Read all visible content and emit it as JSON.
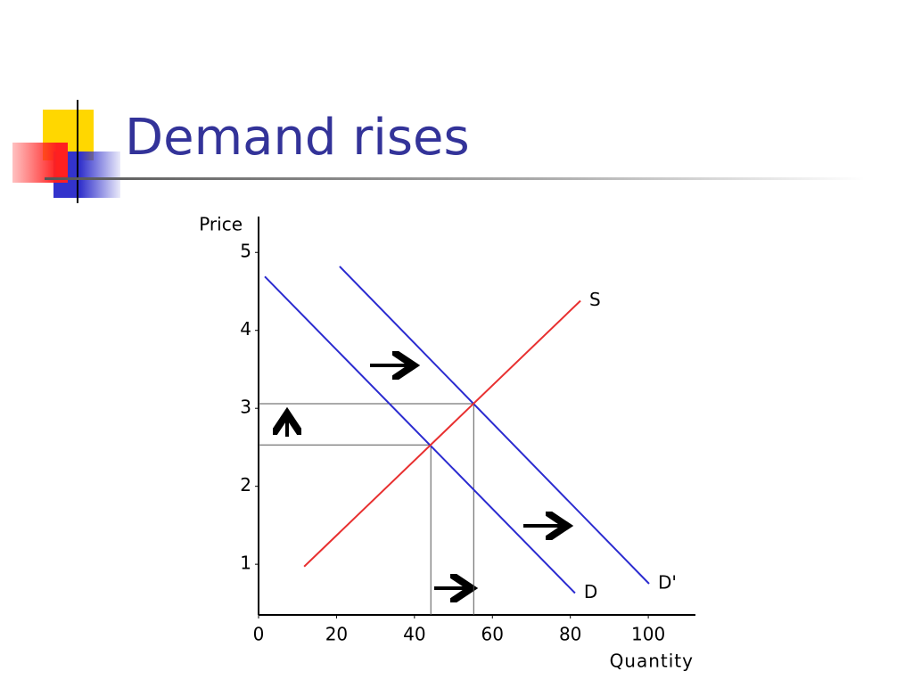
{
  "title": "Demand rises",
  "chart_data": {
    "type": "line",
    "x_label": "Quantity",
    "y_label": "Price",
    "xlim": [
      0,
      112.1
    ],
    "ylim": [
      0.35,
      5.46
    ],
    "xticks": [
      0,
      20,
      40,
      60,
      80,
      100
    ],
    "yticks": [
      1,
      2,
      3,
      4,
      5
    ],
    "series": [
      {
        "name": "D",
        "color": "#2b2bd0",
        "x": [
          1.6,
          81.2
        ],
        "values": [
          4.69,
          0.63
        ]
      },
      {
        "name": "D'",
        "color": "#2b2bd0",
        "x": [
          20.8,
          100.2
        ],
        "values": [
          4.82,
          0.75
        ]
      },
      {
        "name": "S",
        "color": "#e83030",
        "x": [
          11.7,
          82.6
        ],
        "values": [
          0.97,
          4.38
        ]
      }
    ],
    "guides": {
      "color": "#555555",
      "x": [
        44.2,
        55.2
      ],
      "y": [
        2.53,
        3.06
      ]
    }
  }
}
